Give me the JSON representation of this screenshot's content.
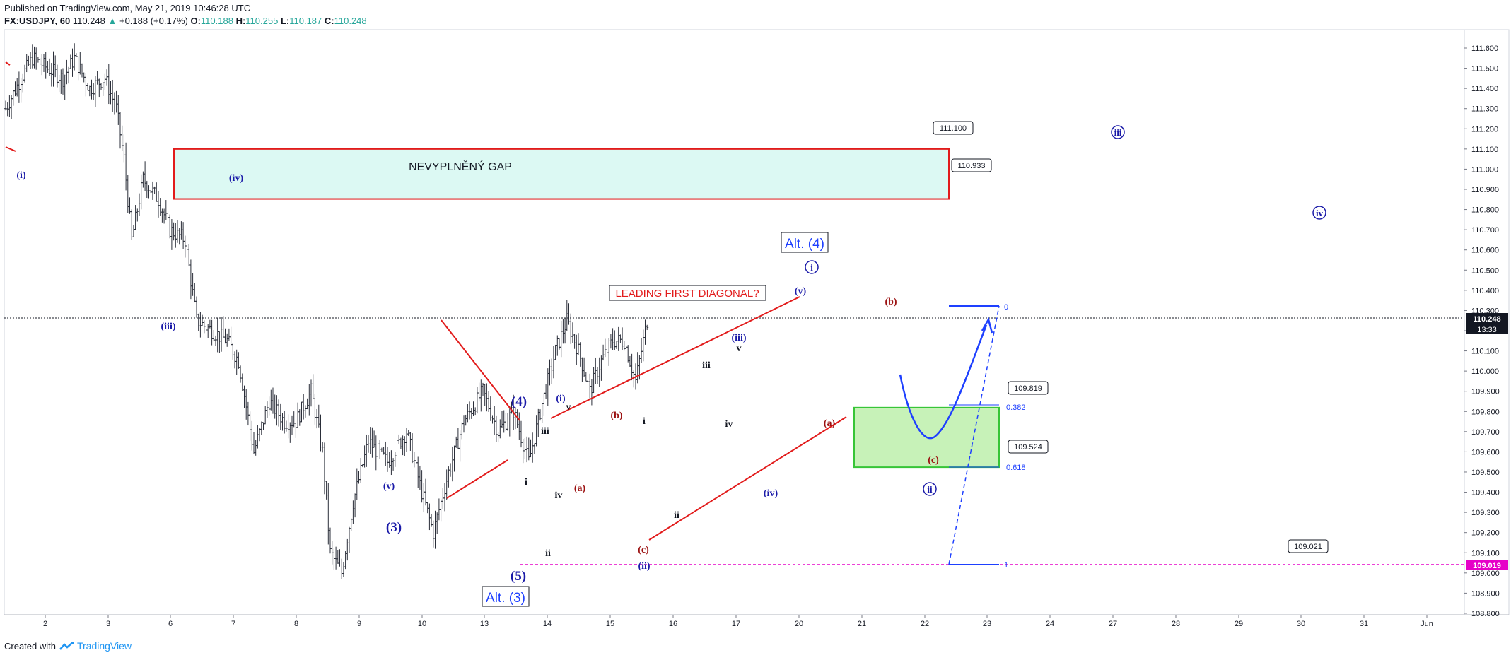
{
  "header": {
    "published": "Published on TradingView.com, May 21, 2019 10:46:28 UTC",
    "symbol": "FX:USDJPY, 60",
    "last": "110.248",
    "change": "+0.188 (+0.17%)",
    "o_label": "O:",
    "o": "110.188",
    "h_label": "H:",
    "h": "110.255",
    "l_label": "L:",
    "l": "110.187",
    "c_label": "C:",
    "c": "110.248"
  },
  "footer": {
    "created": "Created with",
    "brand": "TradingView"
  },
  "colors": {
    "blue": "#1a1aa8",
    "bright_blue": "#1e40ff",
    "red": "#e21b1b",
    "darkred": "#9b1010",
    "magenta": "#e600c8",
    "gap_fill": "#dcf9f3",
    "target_fill": "#c7f2b8",
    "target_stroke": "#37c537"
  },
  "chart_data": {
    "type": "candlestick",
    "title": "",
    "ylim": [
      108.75,
      111.7
    ],
    "y_ticks": [
      "111.600",
      "111.500",
      "111.400",
      "111.300",
      "111.200",
      "111.100",
      "111.000",
      "110.900",
      "110.800",
      "110.700",
      "110.600",
      "110.500",
      "110.400",
      "110.300",
      "110.200",
      "110.100",
      "110.000",
      "109.900",
      "109.800",
      "109.700",
      "109.600",
      "109.500",
      "109.400",
      "109.300",
      "109.200",
      "109.100",
      "109.000",
      "108.900",
      "108.800"
    ],
    "x_ticks": [
      "2",
      "3",
      "6",
      "7",
      "8",
      "9",
      "10",
      "13",
      "14",
      "15",
      "16",
      "17",
      "20",
      "21",
      "22",
      "23",
      "24",
      "27",
      "28",
      "29",
      "30",
      "31",
      "Jun"
    ],
    "last_price_label": "110.248",
    "countdown": "13:33",
    "low_price_label": "109.019",
    "path_points": [
      [
        0,
        111.3
      ],
      [
        8,
        111.45
      ],
      [
        14,
        111.55
      ],
      [
        22,
        111.5
      ],
      [
        30,
        111.45
      ],
      [
        36,
        111.55
      ],
      [
        44,
        111.4
      ],
      [
        52,
        111.45
      ],
      [
        58,
        111.3
      ],
      [
        62,
        111.05
      ],
      [
        66,
        110.65
      ],
      [
        72,
        110.95
      ],
      [
        80,
        110.85
      ],
      [
        86,
        110.7
      ],
      [
        94,
        110.65
      ],
      [
        100,
        110.25
      ],
      [
        108,
        110.2
      ],
      [
        116,
        110.15
      ],
      [
        122,
        110.05
      ],
      [
        130,
        109.6
      ],
      [
        138,
        109.85
      ],
      [
        146,
        109.75
      ],
      [
        152,
        109.75
      ],
      [
        160,
        109.9
      ],
      [
        166,
        109.6
      ],
      [
        170,
        109.1
      ],
      [
        176,
        109.0
      ],
      [
        182,
        109.35
      ],
      [
        190,
        109.65
      ],
      [
        200,
        109.55
      ],
      [
        210,
        109.7
      ],
      [
        218,
        109.4
      ],
      [
        224,
        109.2
      ],
      [
        232,
        109.5
      ],
      [
        240,
        109.75
      ],
      [
        250,
        109.9
      ],
      [
        258,
        109.7
      ],
      [
        266,
        109.8
      ],
      [
        274,
        109.55
      ],
      [
        280,
        109.8
      ],
      [
        288,
        110.1
      ],
      [
        294,
        110.25
      ],
      [
        300,
        110.1
      ],
      [
        306,
        109.9
      ],
      [
        312,
        110.05
      ],
      [
        318,
        110.15
      ],
      [
        324,
        110.15
      ],
      [
        330,
        109.95
      ],
      [
        336,
        110.25
      ]
    ],
    "zones": [
      {
        "label": "NEVYPLNĚNÝ GAP",
        "top": 111.1,
        "bottom": 110.933
      },
      {
        "label": "",
        "top": 109.819,
        "bottom": 109.524
      }
    ],
    "price_callouts": [
      "111.100",
      "110.933",
      "109.819",
      "109.524",
      "109.021"
    ],
    "fib_labels": [
      "0.382",
      "0.618",
      "0",
      "1"
    ],
    "annotations": [
      {
        "t": "LEADING FIRST DIAGONAL?"
      },
      {
        "t": "Alt. (4)"
      },
      {
        "t": "Alt. (3)"
      },
      {
        "t": "(i)",
        "g": "blue"
      },
      {
        "t": "(iv)",
        "g": "blue"
      },
      {
        "t": "(iii)",
        "g": "blue"
      },
      {
        "t": "(v)",
        "g": "blue"
      },
      {
        "t": "(3)",
        "g": "blue"
      },
      {
        "t": "(4)",
        "g": "blue"
      },
      {
        "t": "(5)",
        "g": "blue"
      },
      {
        "t": "(i)",
        "g": "blue"
      },
      {
        "t": "v",
        "g": "black"
      },
      {
        "t": "iii",
        "g": "black"
      },
      {
        "t": "iv",
        "g": "black"
      },
      {
        "t": "i",
        "g": "black"
      },
      {
        "t": "ii",
        "g": "black"
      },
      {
        "t": "(b)",
        "g": "red"
      },
      {
        "t": "(a)",
        "g": "red"
      },
      {
        "t": "(c)",
        "g": "red"
      },
      {
        "t": "(ii)",
        "g": "blue"
      },
      {
        "t": "i",
        "g": "black"
      },
      {
        "t": "ii",
        "g": "black"
      },
      {
        "t": "iii",
        "g": "black"
      },
      {
        "t": "v",
        "g": "black"
      },
      {
        "t": "(iii)",
        "g": "blue"
      },
      {
        "t": "iv",
        "g": "black"
      },
      {
        "t": "(iv)",
        "g": "blue"
      },
      {
        "t": "(v)",
        "g": "blue"
      },
      {
        "t": "(b)",
        "g": "red"
      },
      {
        "t": "(a)",
        "g": "red"
      },
      {
        "t": "(c)",
        "g": "red"
      },
      {
        "t": "i",
        "g": "circle"
      },
      {
        "t": "ii",
        "g": "circle"
      },
      {
        "t": "iii",
        "g": "circle"
      },
      {
        "t": "iv",
        "g": "circle"
      }
    ]
  }
}
